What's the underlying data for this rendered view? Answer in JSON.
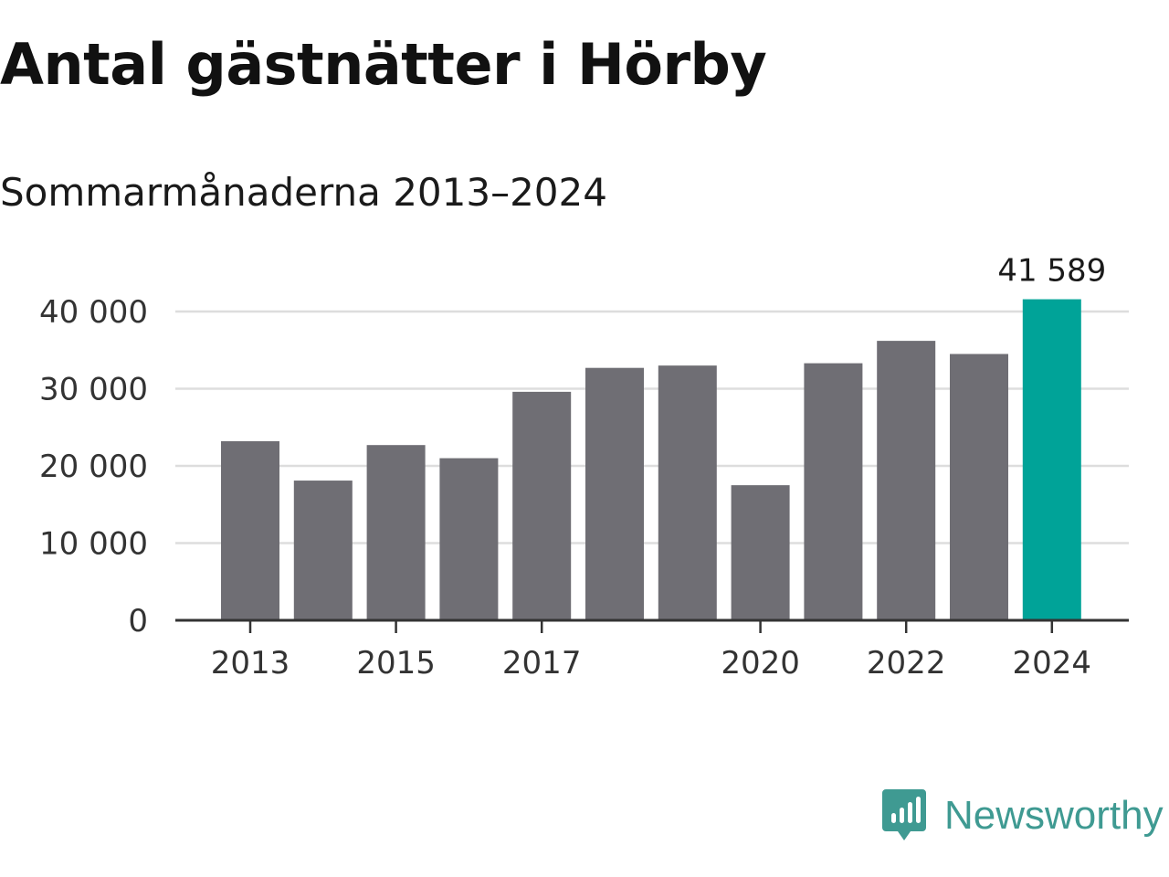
{
  "title": "Antal gästnätter i Hörby",
  "subtitle": "Sommarmånaderna 2013–2024",
  "brand": {
    "name": "Newsworthy",
    "color": "#3f9a92",
    "icon": "newsworthy-logo-icon"
  },
  "colors": {
    "bar": "#6f6e74",
    "highlight": "#00a398",
    "grid": "#dddddd",
    "axis": "#333333"
  },
  "chart_data": {
    "type": "bar",
    "title": "Antal gästnätter i Hörby",
    "subtitle": "Sommarmånaderna 2013–2024",
    "categories": [
      "2013",
      "2014",
      "2015",
      "2016",
      "2017",
      "2018",
      "2019",
      "2020",
      "2021",
      "2022",
      "2023",
      "2024"
    ],
    "values": [
      23200,
      18100,
      22700,
      21000,
      29600,
      32700,
      33000,
      17500,
      33300,
      36200,
      34500,
      41589
    ],
    "highlight_index": 11,
    "value_label": {
      "index": 11,
      "text": "41 589"
    },
    "ylim": [
      0,
      40000
    ],
    "yticks": [
      {
        "value": 0,
        "label": "0"
      },
      {
        "value": 10000,
        "label": "10 000"
      },
      {
        "value": 20000,
        "label": "20 000"
      },
      {
        "value": 30000,
        "label": "30 000"
      },
      {
        "value": 40000,
        "label": "40 000"
      }
    ],
    "xticks": [
      {
        "index": 0,
        "label": "2013"
      },
      {
        "index": 2,
        "label": "2015"
      },
      {
        "index": 4,
        "label": "2017"
      },
      {
        "index": 7,
        "label": "2020"
      },
      {
        "index": 9,
        "label": "2022"
      },
      {
        "index": 11,
        "label": "2024"
      }
    ],
    "grid": true,
    "legend": "none"
  }
}
